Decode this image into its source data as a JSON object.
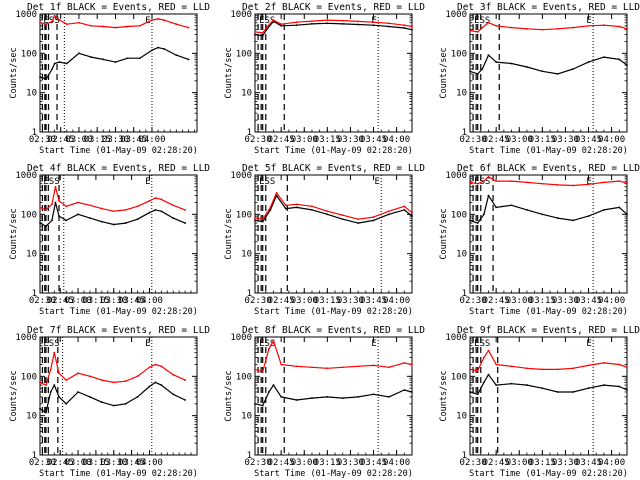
{
  "figure": {
    "xlabel": "Start Time (01-May-09 02:28:20)",
    "ylabel": "Counts/sec",
    "x_tick_labels": [
      "02:30",
      "02:45",
      "03:00",
      "03:15",
      "03:30",
      "03:45",
      "04:00"
    ],
    "y_tick_labels": [
      "1",
      "10",
      "100",
      "1000"
    ],
    "series_colors": {
      "events": "#000000",
      "lld": "#ff0000"
    },
    "marker_labels": {
      "start": "ESS",
      "end": "E"
    }
  },
  "chart_data": [
    {
      "type": "line",
      "title": "Det 1f BLACK = Events, RED = LLD",
      "xlim": [
        "02:28",
        "04:37"
      ],
      "ylim": [
        1,
        1000
      ],
      "yscale": "log",
      "vlines_dashed": [
        "02:30",
        "02:32",
        "02:33",
        "02:35",
        "02:42"
      ],
      "vlines_dotted": [
        "02:48",
        "04:00"
      ],
      "series": [
        {
          "key": "events",
          "x": [
            "02:28",
            "02:33",
            "02:38",
            "02:40",
            "02:44",
            "02:50",
            "03:00",
            "03:10",
            "03:20",
            "03:30",
            "03:40",
            "03:50",
            "04:00",
            "04:05",
            "04:10",
            "04:20",
            "04:30"
          ],
          "values": [
            25,
            22,
            40,
            55,
            60,
            55,
            100,
            80,
            70,
            60,
            75,
            75,
            120,
            140,
            130,
            90,
            70
          ]
        },
        {
          "key": "lld",
          "x": [
            "02:28",
            "02:33",
            "02:38",
            "02:40",
            "02:44",
            "02:50",
            "03:00",
            "03:10",
            "03:20",
            "03:30",
            "03:40",
            "03:50",
            "04:00",
            "04:05",
            "04:10",
            "04:20",
            "04:30"
          ],
          "values": [
            600,
            550,
            650,
            900,
            700,
            550,
            600,
            500,
            480,
            450,
            480,
            500,
            700,
            750,
            700,
            550,
            450
          ]
        }
      ]
    },
    {
      "type": "line",
      "title": "Det 2f BLACK = Events, RED = LLD",
      "xlim": [
        "02:28",
        "04:10"
      ],
      "ylim": [
        1,
        1000
      ],
      "yscale": "log",
      "vlines_dashed": [
        "02:30",
        "02:32",
        "02:33",
        "02:35",
        "02:47"
      ],
      "vlines_dotted": [
        "03:48"
      ],
      "series": [
        {
          "key": "events",
          "x": [
            "02:28",
            "02:33",
            "02:36",
            "02:40",
            "02:45",
            "02:55",
            "03:05",
            "03:15",
            "03:25",
            "03:35",
            "03:45",
            "03:55",
            "04:05",
            "04:10"
          ],
          "values": [
            300,
            280,
            420,
            650,
            500,
            520,
            560,
            580,
            560,
            540,
            520,
            480,
            440,
            400
          ]
        },
        {
          "key": "lld",
          "x": [
            "02:28",
            "02:33",
            "02:36",
            "02:40",
            "02:45",
            "02:55",
            "03:05",
            "03:15",
            "03:25",
            "03:35",
            "03:45",
            "03:55",
            "04:05",
            "04:10"
          ],
          "values": [
            350,
            330,
            480,
            700,
            550,
            620,
            660,
            700,
            680,
            650,
            620,
            580,
            520,
            480
          ]
        }
      ]
    },
    {
      "type": "line",
      "title": "Det 3f BLACK = Events, RED = LLD",
      "xlim": [
        "02:28",
        "04:10"
      ],
      "ylim": [
        1,
        1000
      ],
      "yscale": "log",
      "vlines_dashed": [
        "02:30",
        "02:32",
        "02:33",
        "02:35",
        "02:47"
      ],
      "vlines_dotted": [
        "03:48"
      ],
      "series": [
        {
          "key": "events",
          "x": [
            "02:28",
            "02:33",
            "02:36",
            "02:40",
            "02:45",
            "02:55",
            "03:05",
            "03:15",
            "03:25",
            "03:35",
            "03:45",
            "03:55",
            "04:05",
            "04:10"
          ],
          "values": [
            35,
            30,
            40,
            90,
            60,
            55,
            45,
            35,
            30,
            40,
            60,
            80,
            70,
            50
          ]
        },
        {
          "key": "lld",
          "x": [
            "02:28",
            "02:33",
            "02:36",
            "02:40",
            "02:45",
            "02:55",
            "03:05",
            "03:15",
            "03:25",
            "03:35",
            "03:45",
            "03:55",
            "04:05",
            "04:10"
          ],
          "values": [
            380,
            350,
            450,
            600,
            500,
            450,
            420,
            400,
            420,
            450,
            500,
            520,
            480,
            420
          ]
        }
      ]
    },
    {
      "type": "line",
      "title": "Det 4f BLACK = Events, RED = LLD",
      "xlim": [
        "02:28",
        "04:40"
      ],
      "ylim": [
        1,
        1000
      ],
      "yscale": "log",
      "vlines_dashed": [
        "02:30",
        "02:32",
        "02:33",
        "02:35",
        "02:44"
      ],
      "vlines_dotted": [
        "02:48",
        "04:02"
      ],
      "series": [
        {
          "key": "events",
          "x": [
            "02:28",
            "02:33",
            "02:38",
            "02:41",
            "02:44",
            "02:50",
            "03:00",
            "03:10",
            "03:20",
            "03:30",
            "03:40",
            "03:50",
            "04:00",
            "04:05",
            "04:10",
            "04:20",
            "04:30"
          ],
          "values": [
            60,
            50,
            70,
            200,
            90,
            70,
            100,
            80,
            65,
            55,
            60,
            75,
            110,
            130,
            120,
            80,
            60
          ]
        },
        {
          "key": "lld",
          "x": [
            "02:28",
            "02:33",
            "02:38",
            "02:41",
            "02:44",
            "02:50",
            "03:00",
            "03:10",
            "03:20",
            "03:30",
            "03:40",
            "03:50",
            "04:00",
            "04:05",
            "04:10",
            "04:20",
            "04:30"
          ],
          "values": [
            150,
            130,
            180,
            500,
            220,
            160,
            200,
            170,
            140,
            120,
            130,
            160,
            220,
            260,
            240,
            170,
            130
          ]
        }
      ]
    },
    {
      "type": "line",
      "title": "Det 5f BLACK = Events, RED = LLD",
      "xlim": [
        "02:28",
        "04:10"
      ],
      "ylim": [
        1,
        1000
      ],
      "yscale": "log",
      "vlines_dashed": [
        "02:30",
        "02:32",
        "02:33",
        "02:35",
        "02:49"
      ],
      "vlines_dotted": [
        "03:50"
      ],
      "series": [
        {
          "key": "events",
          "x": [
            "02:28",
            "02:33",
            "02:38",
            "02:42",
            "02:48",
            "02:55",
            "03:05",
            "03:15",
            "03:25",
            "03:35",
            "03:45",
            "03:55",
            "04:05",
            "04:10"
          ],
          "values": [
            70,
            65,
            130,
            300,
            140,
            150,
            130,
            100,
            75,
            60,
            70,
            100,
            130,
            90
          ]
        },
        {
          "key": "lld",
          "x": [
            "02:28",
            "02:33",
            "02:38",
            "02:42",
            "02:48",
            "02:55",
            "03:05",
            "03:15",
            "03:25",
            "03:35",
            "03:45",
            "03:55",
            "04:05",
            "04:10"
          ],
          "values": [
            80,
            75,
            150,
            350,
            170,
            180,
            160,
            120,
            95,
            75,
            85,
            120,
            160,
            110
          ]
        }
      ]
    },
    {
      "type": "line",
      "title": "Det 6f BLACK = Events, RED = LLD",
      "xlim": [
        "02:28",
        "04:10"
      ],
      "ylim": [
        1,
        1000
      ],
      "yscale": "log",
      "vlines_dashed": [
        "02:30",
        "02:32",
        "02:33",
        "02:35",
        "02:43"
      ],
      "vlines_dotted": [
        "03:48"
      ],
      "series": [
        {
          "key": "events",
          "x": [
            "02:28",
            "02:33",
            "02:37",
            "02:40",
            "02:45",
            "02:55",
            "03:05",
            "03:15",
            "03:25",
            "03:35",
            "03:45",
            "03:55",
            "04:05",
            "04:10"
          ],
          "values": [
            70,
            60,
            100,
            300,
            150,
            170,
            130,
            100,
            80,
            70,
            90,
            130,
            150,
            100
          ]
        },
        {
          "key": "lld",
          "x": [
            "02:28",
            "02:33",
            "02:37",
            "02:40",
            "02:45",
            "02:55",
            "03:05",
            "03:15",
            "03:25",
            "03:35",
            "03:45",
            "03:55",
            "04:05",
            "04:10"
          ],
          "values": [
            650,
            600,
            700,
            900,
            700,
            700,
            650,
            600,
            560,
            540,
            580,
            650,
            700,
            620
          ]
        }
      ]
    },
    {
      "type": "line",
      "title": "Det 7f BLACK = Events, RED = LLD",
      "xlim": [
        "02:28",
        "04:40"
      ],
      "ylim": [
        1,
        1000
      ],
      "yscale": "log",
      "vlines_dashed": [
        "02:30",
        "02:32",
        "02:33",
        "02:35",
        "02:43"
      ],
      "vlines_dotted": [
        "02:47",
        "04:02"
      ],
      "series": [
        {
          "key": "events",
          "x": [
            "02:28",
            "02:33",
            "02:37",
            "02:40",
            "02:44",
            "02:50",
            "03:00",
            "03:10",
            "03:20",
            "03:30",
            "03:40",
            "03:50",
            "04:00",
            "04:05",
            "04:10",
            "04:20",
            "04:30"
          ],
          "values": [
            15,
            12,
            40,
            60,
            30,
            20,
            40,
            30,
            22,
            18,
            20,
            30,
            55,
            70,
            60,
            35,
            25
          ]
        },
        {
          "key": "lld",
          "x": [
            "02:28",
            "02:33",
            "02:37",
            "02:40",
            "02:44",
            "02:50",
            "03:00",
            "03:10",
            "03:20",
            "03:30",
            "03:40",
            "03:50",
            "04:00",
            "04:05",
            "04:10",
            "04:20",
            "04:30"
          ],
          "values": [
            70,
            60,
            150,
            400,
            120,
            80,
            120,
            100,
            80,
            70,
            75,
            100,
            170,
            200,
            180,
            110,
            80
          ]
        }
      ]
    },
    {
      "type": "line",
      "title": "Det 8f BLACK = Events, RED = LLD",
      "xlim": [
        "02:28",
        "04:10"
      ],
      "ylim": [
        1,
        1000
      ],
      "yscale": "log",
      "vlines_dashed": [
        "02:30",
        "02:32",
        "02:33",
        "02:35",
        "02:47"
      ],
      "vlines_dotted": [
        "03:48"
      ],
      "series": [
        {
          "key": "events",
          "x": [
            "02:28",
            "02:33",
            "02:37",
            "02:40",
            "02:45",
            "02:55",
            "03:05",
            "03:15",
            "03:25",
            "03:35",
            "03:45",
            "03:55",
            "04:05",
            "04:10"
          ],
          "values": [
            20,
            18,
            40,
            60,
            30,
            25,
            28,
            30,
            28,
            30,
            35,
            30,
            45,
            40
          ]
        },
        {
          "key": "lld",
          "x": [
            "02:28",
            "02:33",
            "02:37",
            "02:40",
            "02:45",
            "02:55",
            "03:05",
            "03:15",
            "03:25",
            "03:35",
            "03:45",
            "03:55",
            "04:05",
            "04:10"
          ],
          "values": [
            150,
            130,
            500,
            800,
            200,
            180,
            170,
            160,
            170,
            180,
            190,
            170,
            220,
            200
          ]
        }
      ]
    },
    {
      "type": "line",
      "title": "Det 9f BLACK = Events, RED = LLD",
      "xlim": [
        "02:28",
        "04:10"
      ],
      "ylim": [
        1,
        1000
      ],
      "yscale": "log",
      "vlines_dashed": [
        "02:30",
        "02:32",
        "02:33",
        "02:35",
        "02:46"
      ],
      "vlines_dotted": [
        "03:48"
      ],
      "series": [
        {
          "key": "events",
          "x": [
            "02:28",
            "02:33",
            "02:37",
            "02:40",
            "02:45",
            "02:55",
            "03:05",
            "03:15",
            "03:25",
            "03:35",
            "03:45",
            "03:55",
            "04:05",
            "04:10"
          ],
          "values": [
            40,
            35,
            70,
            110,
            60,
            65,
            60,
            50,
            40,
            40,
            50,
            60,
            55,
            45
          ]
        },
        {
          "key": "lld",
          "x": [
            "02:28",
            "02:33",
            "02:37",
            "02:40",
            "02:45",
            "02:55",
            "03:05",
            "03:15",
            "03:25",
            "03:35",
            "03:45",
            "03:55",
            "04:05",
            "04:10"
          ],
          "values": [
            150,
            140,
            300,
            450,
            200,
            180,
            160,
            150,
            150,
            160,
            190,
            220,
            200,
            170
          ]
        }
      ]
    }
  ]
}
